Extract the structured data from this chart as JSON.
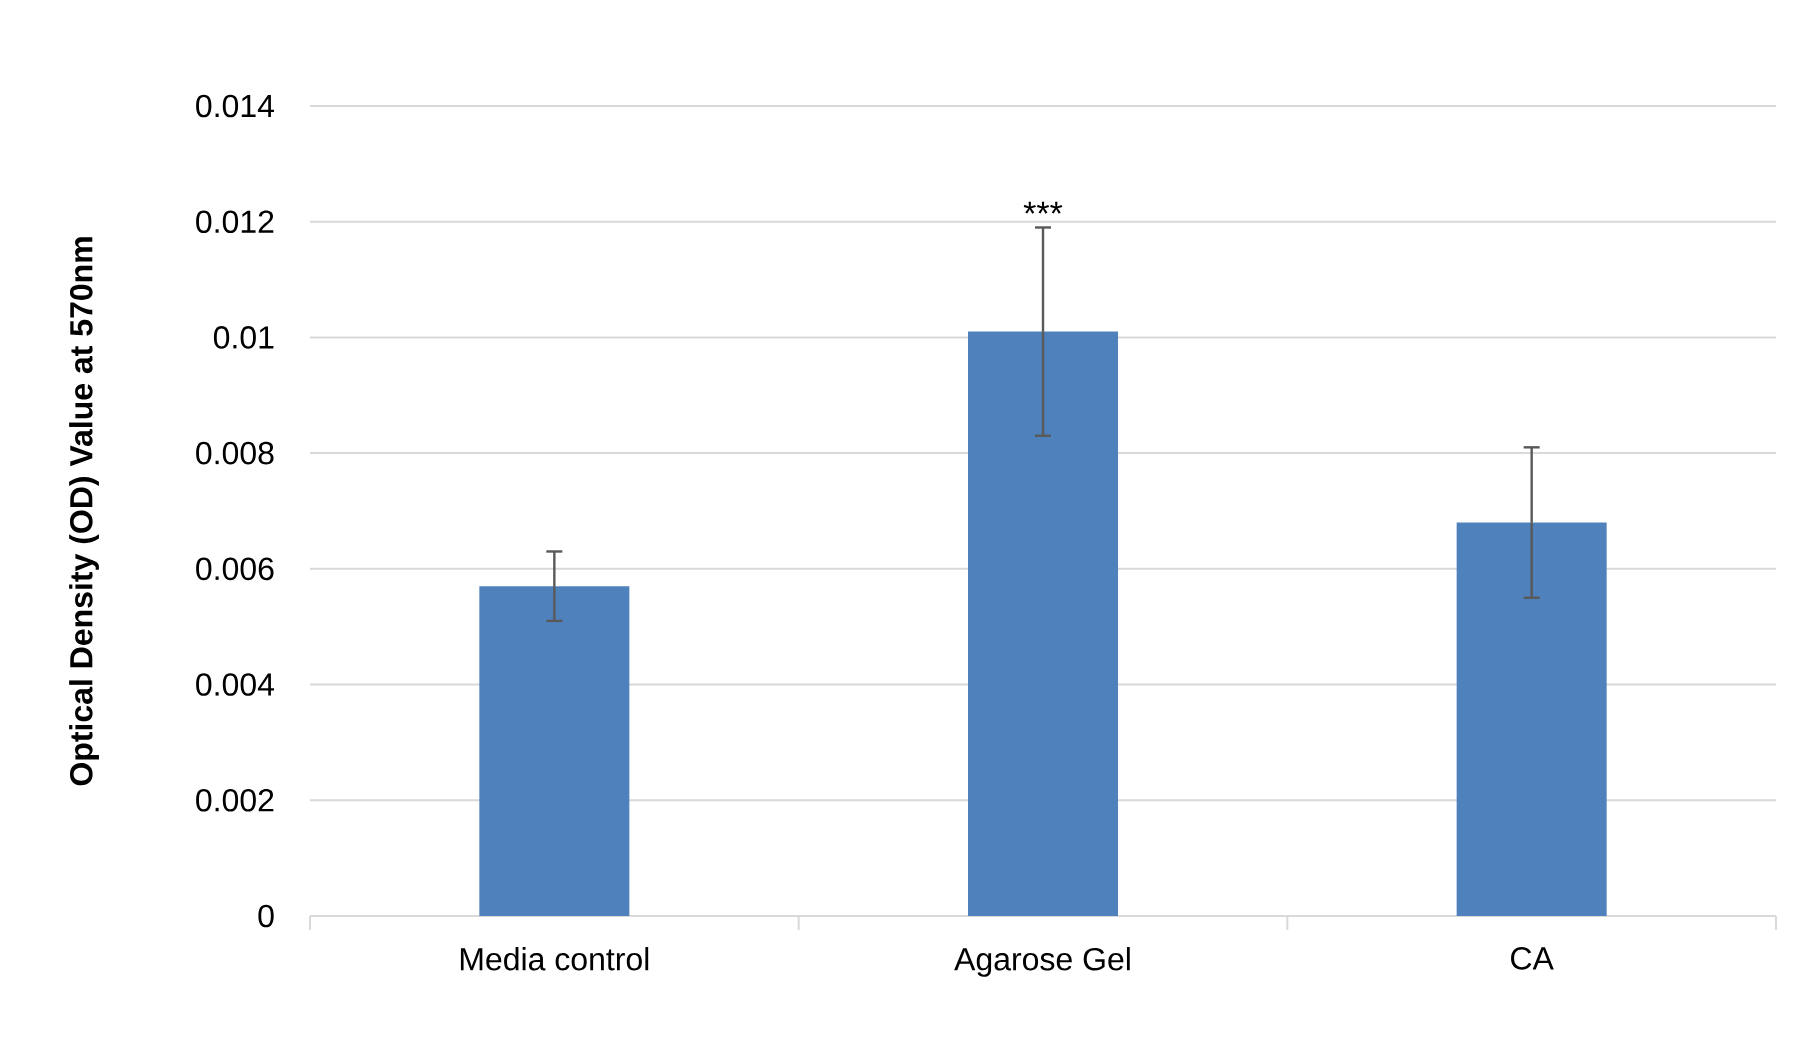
{
  "chart_data": {
    "type": "bar",
    "ylabel": "Optical Density (OD) Value at 570nm",
    "categories": [
      "Media control",
      "Agarose Gel",
      "CA"
    ],
    "values": [
      0.0057,
      0.0101,
      0.0068
    ],
    "errors": [
      0.0006,
      0.0018,
      0.0013
    ],
    "color": "#4f81bd",
    "ylim": [
      0,
      0.014
    ],
    "yticks": [
      0,
      0.002,
      0.004,
      0.006,
      0.008,
      0.01,
      0.012,
      0.014
    ],
    "grid": "y",
    "annotations": [
      {
        "text": "***",
        "x": "Agarose Gel",
        "y": 0.0119
      }
    ]
  }
}
